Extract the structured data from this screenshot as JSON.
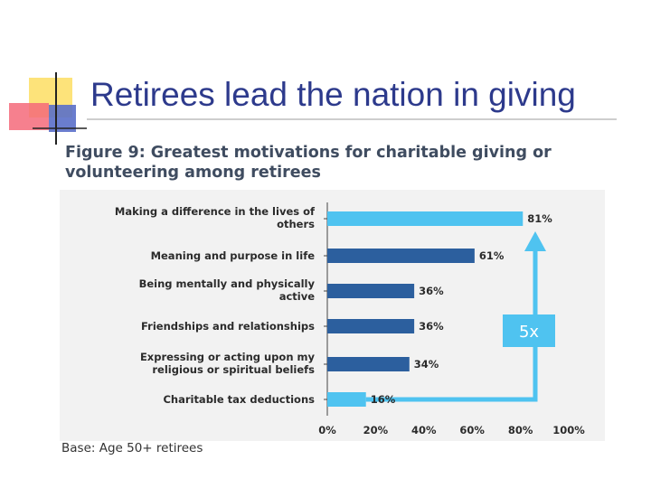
{
  "slide_title": "Retirees lead the nation in giving",
  "chart_data": {
    "type": "bar",
    "orientation": "horizontal",
    "title": "Figure 9: Greatest motivations for charitable giving or volunteering among retirees",
    "categories": [
      [
        "Making a difference in the lives of",
        "others"
      ],
      [
        "Meaning and purpose in life"
      ],
      [
        "Being mentally and physically",
        "active"
      ],
      [
        "Friendships and relationships"
      ],
      [
        "Expressing or acting upon my",
        "religious or spiritual beliefs"
      ],
      [
        "Charitable tax deductions"
      ]
    ],
    "values": [
      81,
      61,
      36,
      36,
      34,
      16
    ],
    "value_labels": [
      "81%",
      "61%",
      "36%",
      "36%",
      "34%",
      "16%"
    ],
    "bar_colors": [
      "#4fc3f0",
      "#2c5f9e",
      "#2c5f9e",
      "#2c5f9e",
      "#2c5f9e",
      "#4fc3f0"
    ],
    "xlim": [
      0,
      100
    ],
    "x_ticks": [
      "0%",
      "20%",
      "40%",
      "60%",
      "80%",
      "100%"
    ],
    "grid": false,
    "annotation": {
      "text": "5x",
      "color": "#4fc3f0"
    },
    "base_note": "Base: Age 50+ retirees"
  }
}
